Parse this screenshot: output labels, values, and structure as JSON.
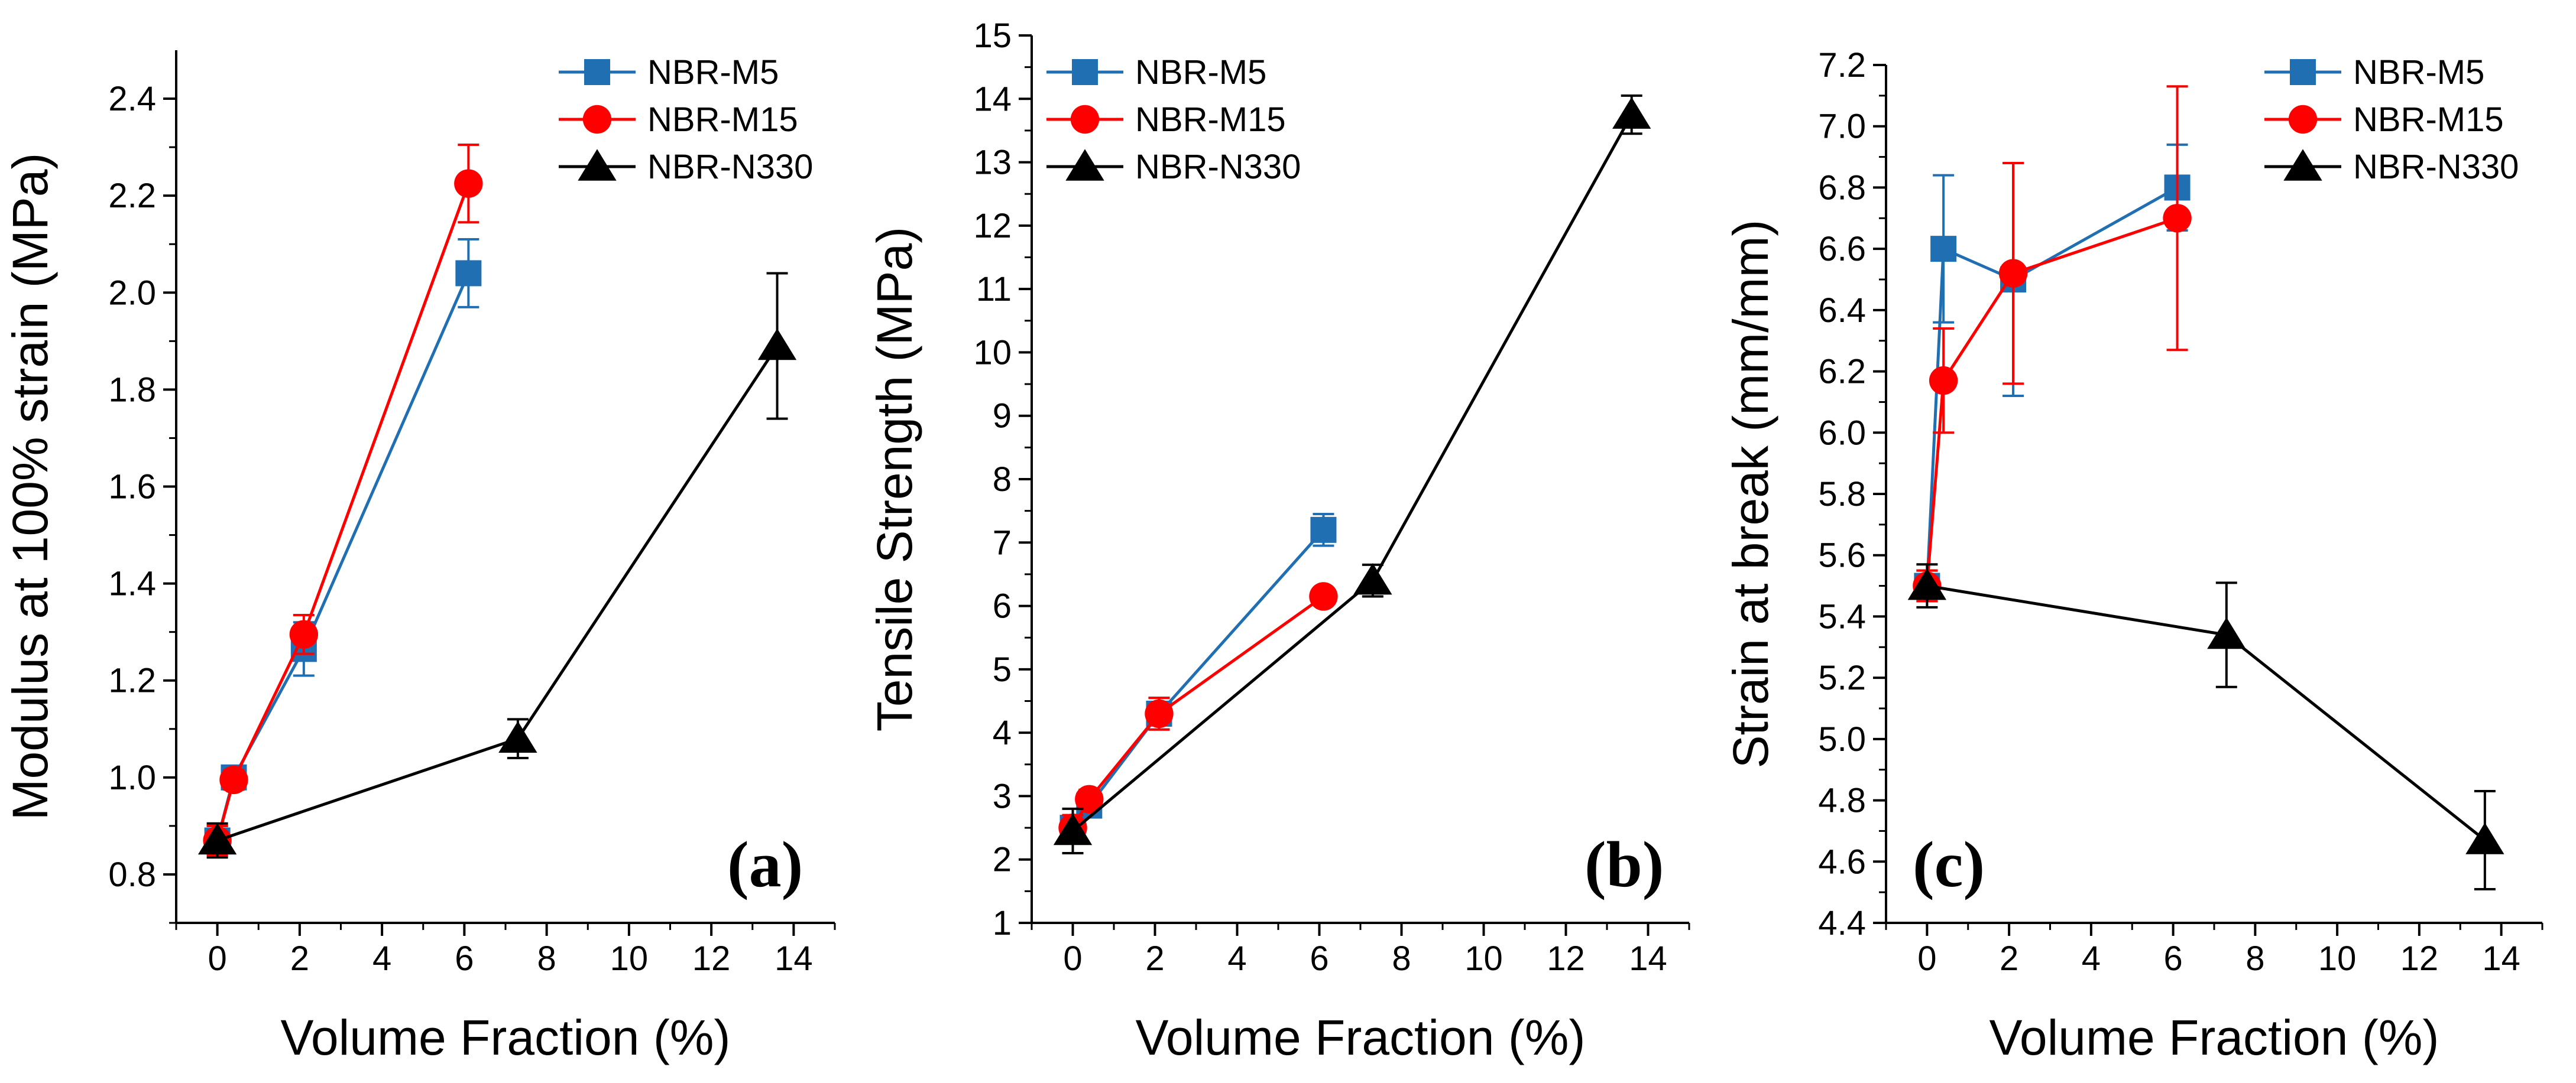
{
  "colors": {
    "NBR-M5": "#1f6fb2",
    "NBR-M15": "#ff0000",
    "NBR-N330": "#000000"
  },
  "chart_data": [
    {
      "type": "line",
      "panel_label": "(a)",
      "xlabel": "Volume Fraction (%)",
      "ylabel": "Modulus at 100% strain (MPa)",
      "xlim": [
        -1,
        15
      ],
      "ylim": [
        0.7,
        2.5
      ],
      "xticks": [
        "0",
        "2",
        "4",
        "6",
        "8",
        "10",
        "12",
        "14"
      ],
      "yticks": [
        "0.8",
        "1.0",
        "1.2",
        "1.4",
        "1.6",
        "1.8",
        "2.0",
        "2.2",
        "2.4"
      ],
      "legend_position": "top-right",
      "series": [
        {
          "name": "NBR-M5",
          "marker": "square",
          "x": [
            0,
            0.4,
            2.1,
            6.1
          ],
          "y": [
            0.87,
            1.0,
            1.265,
            2.04
          ],
          "err": [
            0.03,
            0.02,
            0.055,
            0.07
          ]
        },
        {
          "name": "NBR-M15",
          "marker": "circle",
          "x": [
            0,
            0.4,
            2.1,
            6.1
          ],
          "y": [
            0.87,
            0.995,
            1.295,
            2.225
          ],
          "err": [
            0.03,
            0.02,
            0.04,
            0.08
          ]
        },
        {
          "name": "NBR-N330",
          "marker": "triangle",
          "x": [
            0,
            7.3,
            13.6
          ],
          "y": [
            0.87,
            1.08,
            1.89
          ],
          "err": [
            0.035,
            0.04,
            0.15
          ]
        }
      ]
    },
    {
      "type": "line",
      "panel_label": "(b)",
      "xlabel": "Volume Fraction (%)",
      "ylabel": "Tensile Strength (MPa)",
      "xlim": [
        -1,
        15
      ],
      "ylim": [
        1,
        15
      ],
      "xticks": [
        "0",
        "2",
        "4",
        "6",
        "8",
        "10",
        "12",
        "14"
      ],
      "yticks": [
        "1",
        "2",
        "3",
        "4",
        "5",
        "6",
        "7",
        "8",
        "9",
        "10",
        "11",
        "12",
        "13",
        "14",
        "15"
      ],
      "legend_position": "top-left",
      "series": [
        {
          "name": "NBR-M5",
          "marker": "square",
          "x": [
            0,
            0.4,
            2.1,
            6.1
          ],
          "y": [
            2.5,
            2.85,
            4.3,
            7.2
          ],
          "err": [
            0.2,
            0.15,
            0.25,
            0.25
          ]
        },
        {
          "name": "NBR-M15",
          "marker": "circle",
          "x": [
            0,
            0.4,
            2.1,
            6.1
          ],
          "y": [
            2.5,
            2.95,
            4.3,
            6.15
          ],
          "err": [
            0.2,
            0.15,
            0.25,
            0.05
          ]
        },
        {
          "name": "NBR-N330",
          "marker": "triangle",
          "x": [
            0,
            7.3,
            13.6
          ],
          "y": [
            2.45,
            6.4,
            13.75
          ],
          "err": [
            0.35,
            0.25,
            0.3
          ]
        }
      ]
    },
    {
      "type": "line",
      "panel_label": "(c)",
      "xlabel": "Volume Fraction (%)",
      "ylabel": "Strain at break (mm/mm)",
      "xlim": [
        -1,
        15
      ],
      "ylim": [
        4.4,
        7.2
      ],
      "xticks": [
        "0",
        "2",
        "4",
        "6",
        "8",
        "10",
        "12",
        "14"
      ],
      "yticks": [
        "4.4",
        "4.6",
        "4.8",
        "5.0",
        "5.2",
        "5.4",
        "5.6",
        "5.8",
        "6.0",
        "6.2",
        "6.4",
        "6.6",
        "6.8",
        "7.0",
        "7.2"
      ],
      "legend_position": "top-right",
      "series": [
        {
          "name": "NBR-M5",
          "marker": "square",
          "x": [
            0,
            0.4,
            2.1,
            6.1
          ],
          "y": [
            5.5,
            6.6,
            6.5,
            6.8
          ],
          "err": [
            0.05,
            0.24,
            0.38,
            0.14
          ]
        },
        {
          "name": "NBR-M15",
          "marker": "circle",
          "x": [
            0,
            0.4,
            2.1,
            6.1
          ],
          "y": [
            5.5,
            6.17,
            6.52,
            6.7
          ],
          "err": [
            0.05,
            0.17,
            0.36,
            0.43
          ]
        },
        {
          "name": "NBR-N330",
          "marker": "triangle",
          "x": [
            0,
            7.3,
            13.6
          ],
          "y": [
            5.5,
            5.34,
            4.67
          ],
          "err": [
            0.07,
            0.17,
            0.16
          ]
        }
      ]
    }
  ]
}
